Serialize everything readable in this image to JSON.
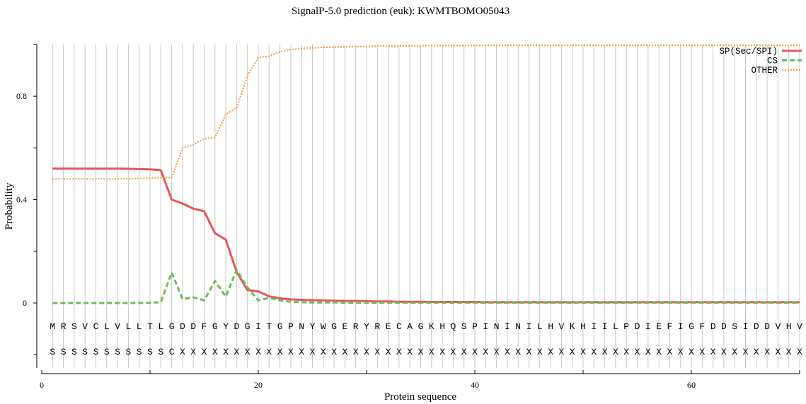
{
  "chart_data": {
    "type": "line",
    "title": "SignalP-5.0 prediction (euk):  KWMTBOMO05043",
    "xlabel": "Protein sequence",
    "ylabel": "Probability",
    "xlim": [
      0,
      70
    ],
    "ylim": [
      -0.25,
      1.0
    ],
    "x_ticks": [
      "0",
      "20",
      "40",
      "60"
    ],
    "y_ticks": [
      "0",
      "0.4",
      "0.8"
    ],
    "grid": "vertical lines at each residue",
    "legend_position": "top-right",
    "sequence": [
      "M",
      "R",
      "S",
      "V",
      "C",
      "L",
      "V",
      "L",
      "L",
      "T",
      "L",
      "G",
      "D",
      "D",
      "F",
      "G",
      "Y",
      "D",
      "G",
      "I",
      "T",
      "G",
      "P",
      "N",
      "Y",
      "W",
      "G",
      "E",
      "R",
      "Y",
      "R",
      "E",
      "C",
      "A",
      "G",
      "K",
      "H",
      "Q",
      "S",
      "P",
      "I",
      "N",
      "I",
      "N",
      "I",
      "L",
      "H",
      "V",
      "K",
      "H",
      "I",
      "I",
      "L",
      "P",
      "D",
      "I",
      "E",
      "F",
      "I",
      "G",
      "F",
      "D",
      "D",
      "S",
      "I",
      "D",
      "D",
      "V",
      "H",
      "V"
    ],
    "labels": [
      "S",
      "S",
      "S",
      "S",
      "S",
      "S",
      "S",
      "S",
      "S",
      "S",
      "S",
      "C",
      "X",
      "X",
      "X",
      "X",
      "X",
      "X",
      "X",
      "X",
      "X",
      "X",
      "X",
      "X",
      "X",
      "X",
      "X",
      "X",
      "X",
      "X",
      "X",
      "X",
      "X",
      "X",
      "X",
      "X",
      "X",
      "X",
      "X",
      "X",
      "X",
      "X",
      "X",
      "X",
      "X",
      "X",
      "X",
      "X",
      "X",
      "X",
      "X",
      "X",
      "X",
      "X",
      "X",
      "X",
      "X",
      "X",
      "X",
      "X",
      "X",
      "X",
      "X",
      "X",
      "X",
      "X",
      "X",
      "X",
      "X",
      "X"
    ],
    "series": [
      {
        "name": "SP(Sec/SPI)",
        "color": "#e8555a",
        "style": "solid",
        "values": [
          0.52,
          0.52,
          0.52,
          0.52,
          0.52,
          0.52,
          0.52,
          0.519,
          0.518,
          0.517,
          0.514,
          0.4,
          0.385,
          0.365,
          0.355,
          0.27,
          0.245,
          0.12,
          0.05,
          0.045,
          0.026,
          0.018,
          0.014,
          0.012,
          0.011,
          0.01,
          0.009,
          0.008,
          0.008,
          0.007,
          0.006,
          0.006,
          0.005,
          0.005,
          0.005,
          0.004,
          0.004,
          0.004,
          0.004,
          0.004,
          0.003,
          0.003,
          0.003,
          0.003,
          0.003,
          0.003,
          0.003,
          0.003,
          0.003,
          0.003,
          0.003,
          0.003,
          0.003,
          0.003,
          0.003,
          0.003,
          0.003,
          0.003,
          0.003,
          0.003,
          0.003,
          0.003,
          0.003,
          0.003,
          0.003,
          0.003,
          0.003,
          0.003,
          0.003,
          0.003
        ]
      },
      {
        "name": "CS",
        "color": "#6dbb5b",
        "style": "dashed",
        "values": [
          0.0,
          0.0,
          0.0,
          0.0,
          0.0,
          0.0,
          0.0,
          0.0,
          0.0,
          0.001,
          0.003,
          0.118,
          0.015,
          0.022,
          0.01,
          0.085,
          0.025,
          0.128,
          0.06,
          0.01,
          0.02,
          0.01,
          0.005,
          0.003,
          0.002,
          0.002,
          0.002,
          0.001,
          0.001,
          0.001,
          0.001,
          0.001,
          0.001,
          0.001,
          0.001,
          0.001,
          0.001,
          0.001,
          0.001,
          0.001,
          0.001,
          0.001,
          0.001,
          0.001,
          0.001,
          0.001,
          0.001,
          0.001,
          0.001,
          0.001,
          0.001,
          0.001,
          0.001,
          0.001,
          0.001,
          0.001,
          0.001,
          0.001,
          0.001,
          0.001,
          0.001,
          0.001,
          0.001,
          0.001,
          0.001,
          0.001,
          0.001,
          0.001,
          0.001,
          0.001
        ]
      },
      {
        "name": "OTHER",
        "color": "#f5a04a",
        "style": "dotted",
        "values": [
          0.48,
          0.48,
          0.48,
          0.48,
          0.48,
          0.48,
          0.48,
          0.481,
          0.482,
          0.483,
          0.485,
          0.485,
          0.6,
          0.612,
          0.635,
          0.64,
          0.73,
          0.755,
          0.88,
          0.95,
          0.955,
          0.972,
          0.98,
          0.985,
          0.987,
          0.989,
          0.99,
          0.991,
          0.992,
          0.993,
          0.994,
          0.994,
          0.995,
          0.995,
          0.995,
          0.996,
          0.996,
          0.996,
          0.996,
          0.996,
          0.997,
          0.997,
          0.997,
          0.997,
          0.997,
          0.997,
          0.997,
          0.997,
          0.997,
          0.997,
          0.997,
          0.997,
          0.997,
          0.997,
          0.997,
          0.997,
          0.997,
          0.997,
          0.997,
          0.997,
          0.997,
          0.997,
          0.997,
          0.997,
          0.997,
          0.997,
          0.997,
          0.997,
          0.997,
          0.997
        ]
      }
    ]
  }
}
